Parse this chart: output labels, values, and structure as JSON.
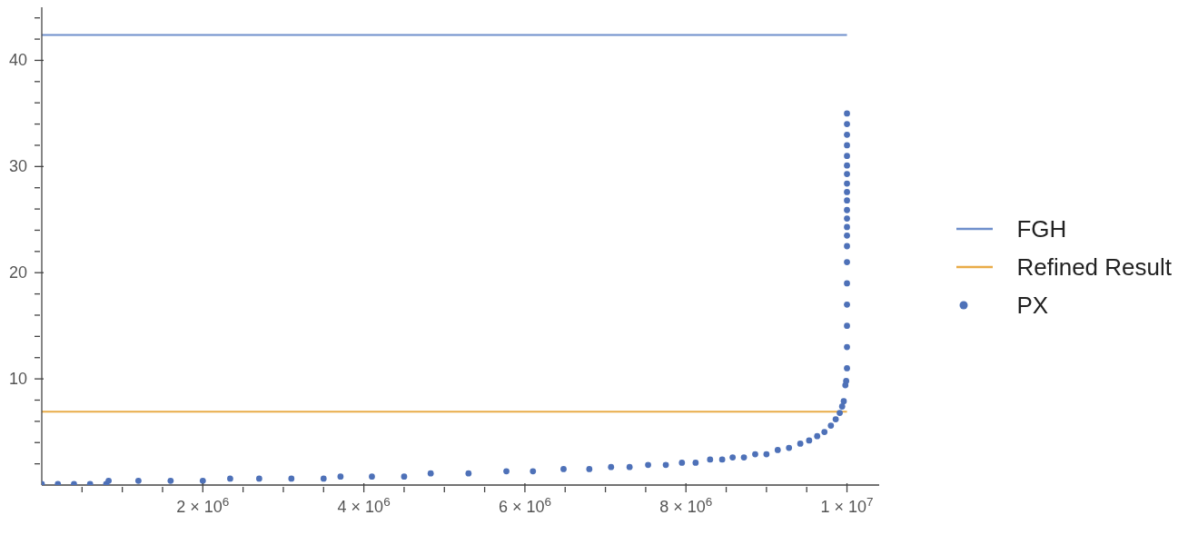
{
  "chart_data": {
    "type": "scatter",
    "xlim": [
      0,
      10400000
    ],
    "ylim": [
      0,
      45
    ],
    "xticks": [
      {
        "value": 500000,
        "label": null
      },
      {
        "value": 1000000,
        "label": null
      },
      {
        "value": 1500000,
        "label": null
      },
      {
        "value": 2000000,
        "label": "2 × 10$^{6}$"
      },
      {
        "value": 2500000,
        "label": null
      },
      {
        "value": 3000000,
        "label": null
      },
      {
        "value": 3500000,
        "label": null
      },
      {
        "value": 4000000,
        "label": "4 × 10$^{6}$"
      },
      {
        "value": 4500000,
        "label": null
      },
      {
        "value": 5000000,
        "label": null
      },
      {
        "value": 5500000,
        "label": null
      },
      {
        "value": 6000000,
        "label": "6 × 10$^{6}$"
      },
      {
        "value": 6500000,
        "label": null
      },
      {
        "value": 7000000,
        "label": null
      },
      {
        "value": 7500000,
        "label": null
      },
      {
        "value": 8000000,
        "label": "8 × 10$^{6}$"
      },
      {
        "value": 8500000,
        "label": null
      },
      {
        "value": 9000000,
        "label": null
      },
      {
        "value": 9500000,
        "label": null
      },
      {
        "value": 10000000,
        "label": "1 × 10$^{7}$"
      }
    ],
    "yticks": [
      {
        "value": 2,
        "label": null
      },
      {
        "value": 4,
        "label": null
      },
      {
        "value": 6,
        "label": null
      },
      {
        "value": 8,
        "label": null
      },
      10,
      {
        "value": 12,
        "label": null
      },
      {
        "value": 14,
        "label": null
      },
      {
        "value": 16,
        "label": null
      },
      {
        "value": 18,
        "label": null
      },
      20,
      {
        "value": 22,
        "label": null
      },
      {
        "value": 24,
        "label": null
      },
      {
        "value": 26,
        "label": null
      },
      {
        "value": 28,
        "label": null
      },
      30,
      {
        "value": 32,
        "label": null
      },
      {
        "value": 34,
        "label": null
      },
      {
        "value": 36,
        "label": null
      },
      {
        "value": 38,
        "label": null
      },
      40,
      {
        "value": 42,
        "label": null
      },
      {
        "value": 44,
        "label": null
      }
    ],
    "legend": "right",
    "series": [
      {
        "name": "FGH",
        "type": "line",
        "line_style": "solid",
        "color": "#6f8fcc",
        "x": [
          0,
          10000000
        ],
        "values": [
          42.4,
          42.4
        ]
      },
      {
        "name": "Refined Result",
        "type": "line",
        "line_style": "solid",
        "color": "#e9ac48",
        "x": [
          0,
          10000000
        ],
        "values": [
          6.9,
          6.9
        ]
      },
      {
        "name": "PX",
        "marker": "circle",
        "color": "#4e71b8",
        "x": [
          0,
          200000,
          400000,
          600000,
          800000,
          830000,
          1200000,
          1600000,
          2000000,
          2340000,
          2700000,
          3100000,
          3500000,
          3710000,
          4100000,
          4500000,
          4830000,
          5300000,
          5770000,
          6100000,
          6480000,
          6800000,
          7070000,
          7300000,
          7530000,
          7750000,
          7950000,
          8120000,
          8300000,
          8450000,
          8580000,
          8720000,
          8860000,
          9000000,
          9140000,
          9280000,
          9420000,
          9530000,
          9630000,
          9720000,
          9800000,
          9860000,
          9910000,
          9940000,
          9960000,
          9980000,
          9990000,
          10000000,
          10000000,
          10000000,
          10000000,
          10000000,
          10000000,
          10000000,
          10000000,
          10000000,
          10000000,
          10000000,
          10000000,
          10000000,
          10000000,
          10000000,
          10000000,
          10000000,
          10000000,
          10000000,
          10000000,
          10000000
        ],
        "values": [
          0.1,
          0.1,
          0.1,
          0.1,
          0.1,
          0.4,
          0.4,
          0.4,
          0.4,
          0.6,
          0.6,
          0.6,
          0.6,
          0.8,
          0.8,
          0.8,
          1.1,
          1.1,
          1.3,
          1.3,
          1.5,
          1.5,
          1.7,
          1.7,
          1.9,
          1.9,
          2.1,
          2.1,
          2.4,
          2.4,
          2.6,
          2.6,
          2.9,
          2.9,
          3.3,
          3.5,
          3.9,
          4.2,
          4.6,
          5.0,
          5.6,
          6.2,
          6.8,
          7.4,
          7.9,
          9.4,
          9.8,
          11,
          13,
          15,
          17,
          19,
          21,
          22.5,
          23.5,
          24.3,
          25.1,
          25.9,
          26.8,
          27.6,
          28.4,
          29.3,
          30.1,
          31.0,
          32.0,
          33.0,
          34.0,
          35.0
        ]
      }
    ]
  }
}
